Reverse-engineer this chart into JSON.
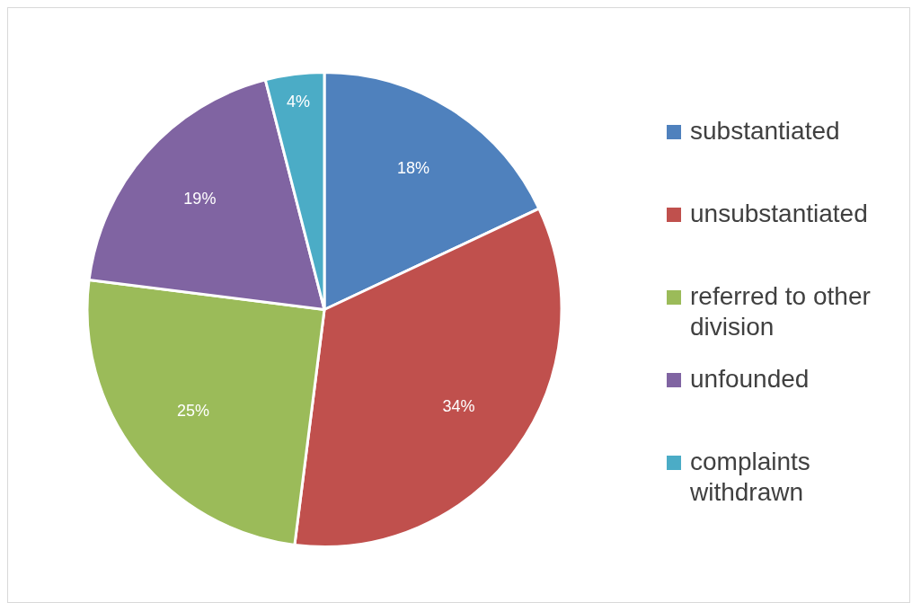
{
  "chart_data": {
    "type": "pie",
    "categories": [
      "substantiated",
      "unsubstantiated",
      "referred to other division",
      "unfounded",
      "complaints withdrawn"
    ],
    "values": [
      18,
      34,
      25,
      19,
      4
    ],
    "colors": [
      "#4f81bd",
      "#c0504d",
      "#9bbb59",
      "#8064a2",
      "#4bacc6"
    ],
    "value_labels": [
      "18%",
      "34%",
      "25%",
      "19%",
      "4%"
    ],
    "legend": "right"
  }
}
